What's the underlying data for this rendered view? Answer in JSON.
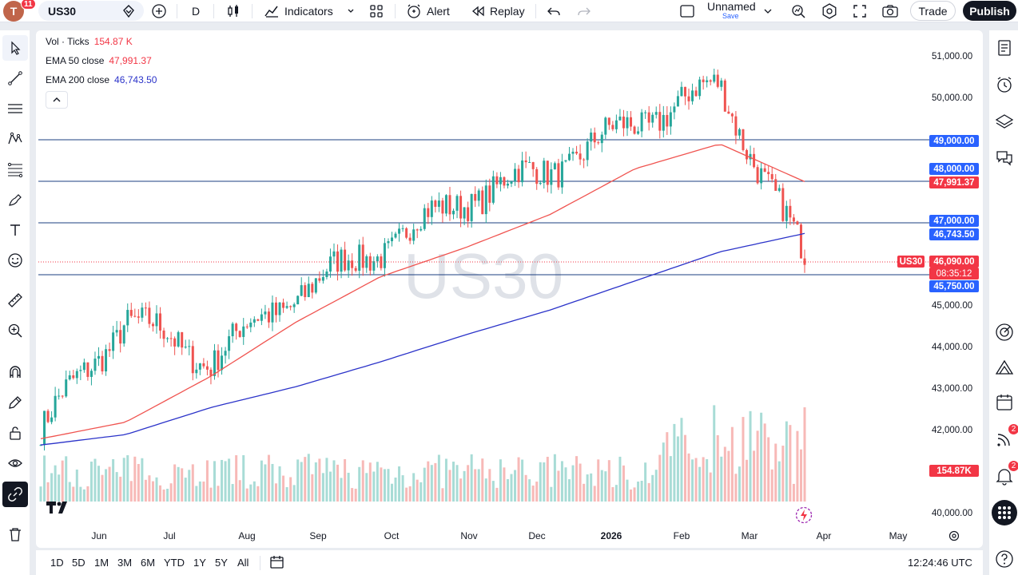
{
  "header": {
    "avatar_letter": "T",
    "notification_count": "11",
    "symbol": "US30",
    "interval": "D",
    "indicators_label": "Indicators",
    "alert_label": "Alert",
    "replay_label": "Replay",
    "layout_name": "Unnamed",
    "layout_save": "Save",
    "trade_label": "Trade",
    "publish_label": "Publish"
  },
  "legend": {
    "vol_label": "Vol · Ticks",
    "vol_value": "154.87 K",
    "ema50_label": "EMA 50 close",
    "ema50_value": "47,991.37",
    "ema200_label": "EMA 200 close",
    "ema200_value": "46,743.50"
  },
  "watermark": "US30",
  "price_axis": [
    "51,000.00",
    "50,000.00",
    "45,000.00",
    "44,000.00",
    "43,000.00",
    "42,000.00",
    "40,000.00"
  ],
  "price_labels": {
    "l49000": "49,000.00",
    "l48000": "48,000.00",
    "ema50": "47,991.37",
    "l47000": "47,000.00",
    "ema200": "46,743.50",
    "symbol_tag": "US30",
    "last_price": "46,090.00",
    "countdown": "08:35:12",
    "l45750": "45,750.00",
    "volume": "154.87K"
  },
  "time_axis": [
    "Jun",
    "Jul",
    "Aug",
    "Sep",
    "Oct",
    "Nov",
    "Dec",
    "2026",
    "Feb",
    "Mar",
    "Apr",
    "May"
  ],
  "bottom_bar": {
    "ranges": [
      "1D",
      "5D",
      "1M",
      "3M",
      "6M",
      "YTD",
      "1Y",
      "5Y",
      "All"
    ],
    "clock": "12:24:46 UTC"
  },
  "right_badges": {
    "ideas": "2",
    "alerts": "2"
  },
  "colors": {
    "up": "#26a69a",
    "down": "#ef5350",
    "ema50": "#f05450",
    "ema200": "#2b33c9",
    "hline": "#1b3f80",
    "blue_label": "#2962ff",
    "red_label": "#f23645"
  },
  "chart_data": {
    "type": "candlestick",
    "symbol": "US30",
    "interval": "D",
    "ylim": [
      40000,
      51400
    ],
    "horizontal_levels": [
      49000,
      48000,
      47000,
      45750
    ],
    "last_price": 46090,
    "ema50_last": 47991.37,
    "ema200_last": 46743.5,
    "volume_last": "154.87K",
    "x": [
      "Jun",
      "Jul",
      "Aug",
      "Sep",
      "Oct",
      "Nov",
      "Dec",
      "2026",
      "Feb",
      "Mar"
    ],
    "series": [
      {
        "name": "US30",
        "values": [
          42000,
          44700,
          43700,
          45300,
          46400,
          47600,
          48300,
          49400,
          50300,
          46090
        ]
      },
      {
        "name": "EMA 50 close",
        "values": [
          41800,
          42200,
          43300,
          44600,
          45700,
          46400,
          47200,
          48300,
          48900,
          47991.37
        ]
      },
      {
        "name": "EMA 200 close",
        "values": [
          41650,
          41900,
          42550,
          43050,
          43650,
          44300,
          44900,
          45600,
          46300,
          46743.5
        ]
      }
    ]
  }
}
